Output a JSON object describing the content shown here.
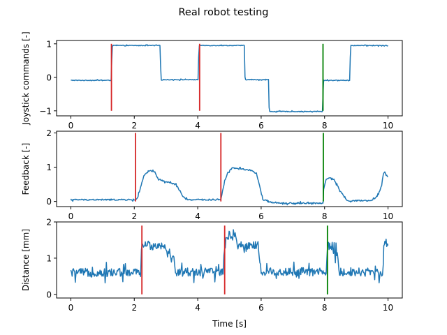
{
  "figure_title": "Real robot testing",
  "colors": {
    "series": "#1f77b4",
    "marker_red": "#d62728",
    "marker_green": "#008000"
  },
  "chart_data": [
    {
      "type": "line",
      "ylabel": "Joystick commands [-]",
      "xlabel": "",
      "xlim": [
        -0.45,
        10.45
      ],
      "ylim": [
        -1.15,
        1.1
      ],
      "xticks": [
        0,
        2,
        4,
        6,
        8,
        10
      ],
      "yticks": [
        -1,
        0,
        1
      ],
      "grid": false,
      "series": [
        {
          "color": "#1f77b4",
          "noise": 0.01,
          "x": [
            0,
            1.27,
            1.29,
            1.31,
            2.81,
            2.83,
            2.85,
            4.01,
            4.03,
            4.05,
            5.47,
            5.49,
            5.51,
            6.23,
            6.25,
            6.27,
            7.93,
            7.95,
            7.97,
            8.79,
            8.81,
            8.83,
            10.0
          ],
          "y": [
            -0.09,
            -0.09,
            0.5,
            0.95,
            0.95,
            0.3,
            -0.07,
            -0.07,
            0.6,
            0.95,
            0.95,
            0.0,
            -0.07,
            -0.07,
            -0.9,
            -1.02,
            -1.02,
            -0.5,
            -0.09,
            -0.09,
            0.6,
            0.95,
            0.95
          ]
        }
      ],
      "markers": [
        {
          "x": 1.28,
          "y0": -1.0,
          "y1": 1.0,
          "color": "#d62728"
        },
        {
          "x": 4.06,
          "y0": -1.0,
          "y1": 1.0,
          "color": "#d62728"
        },
        {
          "x": 7.95,
          "y0": -1.0,
          "y1": 1.0,
          "color": "#008000"
        }
      ]
    },
    {
      "type": "line",
      "ylabel": "Feedback [-]",
      "xlabel": "",
      "xlim": [
        -0.45,
        10.45
      ],
      "ylim": [
        -0.15,
        2.05
      ],
      "xticks": [
        0,
        2,
        4,
        6,
        8,
        10
      ],
      "yticks": [
        0,
        1,
        2
      ],
      "grid": false,
      "series": [
        {
          "color": "#1f77b4",
          "noise": 0.02,
          "x": [
            0,
            2.05,
            2.1,
            2.18,
            2.3,
            2.5,
            2.65,
            2.75,
            2.9,
            3.1,
            3.3,
            3.45,
            3.55,
            3.7,
            4.5,
            4.73,
            4.76,
            4.85,
            4.95,
            5.1,
            5.4,
            5.7,
            5.85,
            5.95,
            6.05,
            6.3,
            6.7,
            7.2,
            7.5,
            7.95,
            7.97,
            8.05,
            8.2,
            8.35,
            8.5,
            8.7,
            9.2,
            9.5,
            9.7,
            9.8,
            9.85,
            9.9,
            10.0
          ],
          "y": [
            0.05,
            0.05,
            0.1,
            0.35,
            0.75,
            0.9,
            0.85,
            0.65,
            0.6,
            0.55,
            0.5,
            0.3,
            0.1,
            0.05,
            0.05,
            0.06,
            0.2,
            0.6,
            0.85,
            0.98,
            0.95,
            0.9,
            0.82,
            0.45,
            0.05,
            -0.02,
            -0.05,
            -0.05,
            -0.05,
            -0.05,
            0.35,
            0.65,
            0.7,
            0.55,
            0.3,
            0.02,
            0.02,
            0.02,
            0.2,
            0.5,
            0.8,
            0.85,
            0.72
          ]
        }
      ],
      "markers": [
        {
          "x": 2.04,
          "y0": 0.0,
          "y1": 2.0,
          "color": "#d62728"
        },
        {
          "x": 4.73,
          "y0": 0.0,
          "y1": 2.0,
          "color": "#d62728"
        },
        {
          "x": 7.96,
          "y0": 0.0,
          "y1": 2.0,
          "color": "#008000"
        }
      ]
    },
    {
      "type": "line",
      "ylabel": "Distance [mm]",
      "xlabel": "Time [s]",
      "xlim": [
        -0.45,
        10.45
      ],
      "ylim": [
        -0.1,
        2.0
      ],
      "xticks": [
        0,
        2,
        4,
        6,
        8,
        10
      ],
      "yticks": [
        0,
        1,
        2
      ],
      "grid": false,
      "series": [
        {
          "color": "#1f77b4",
          "noise": 0.12,
          "x": [
            0,
            2.2,
            2.25,
            3.0,
            3.05,
            3.25,
            3.3,
            4.8,
            4.85,
            4.95,
            5.2,
            5.25,
            5.9,
            6.0,
            7.45,
            7.55,
            8.05,
            8.1,
            8.4,
            8.45,
            9.4,
            9.5,
            9.8,
            9.85,
            9.9,
            10.0
          ],
          "y": [
            0.6,
            0.6,
            1.35,
            1.35,
            1.1,
            0.95,
            0.62,
            0.62,
            1.35,
            1.6,
            1.7,
            1.35,
            1.35,
            0.62,
            0.62,
            0.62,
            0.62,
            1.35,
            1.1,
            0.62,
            0.62,
            0.62,
            0.62,
            0.9,
            1.45,
            1.35
          ]
        }
      ],
      "markers": [
        {
          "x": 2.24,
          "y0": 0.0,
          "y1": 1.9,
          "color": "#d62728"
        },
        {
          "x": 4.85,
          "y0": 0.0,
          "y1": 1.9,
          "color": "#d62728"
        },
        {
          "x": 8.09,
          "y0": 0.0,
          "y1": 1.9,
          "color": "#008000"
        }
      ]
    }
  ]
}
